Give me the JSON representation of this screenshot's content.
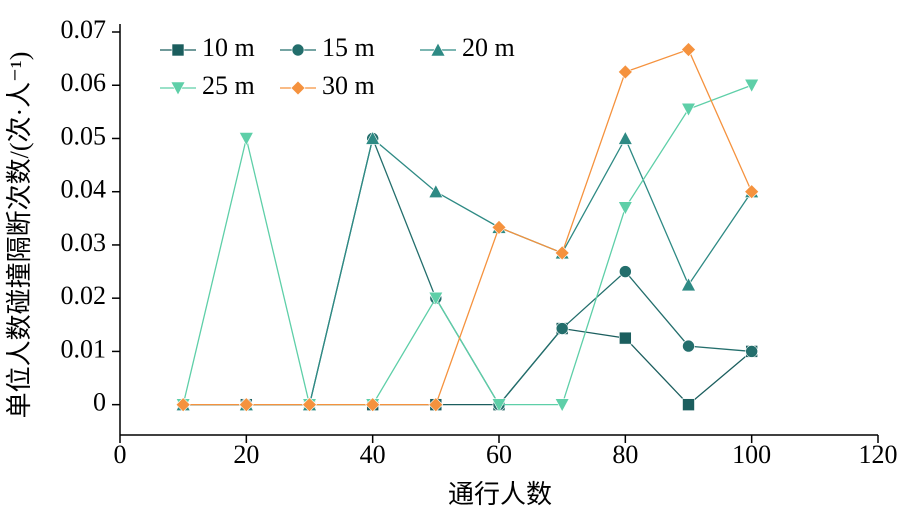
{
  "chart_data": {
    "type": "line",
    "x_label": "通行人数",
    "y_label": "单位人数碰撞隔断次数/(次·人⁻¹)",
    "x": [
      10,
      20,
      30,
      40,
      50,
      60,
      70,
      80,
      90,
      100
    ],
    "xlim": [
      0,
      120
    ],
    "xticks": [
      0,
      20,
      40,
      60,
      80,
      100,
      120
    ],
    "ylim": [
      -0.0057,
      0.07
    ],
    "yticks": [
      0,
      0.01,
      0.02,
      0.03,
      0.04,
      0.05,
      0.06,
      0.07
    ],
    "legend": "upper-left",
    "series": [
      {
        "name": "10 m",
        "color": "#1b5e5e",
        "marker": "square",
        "values": [
          0,
          0,
          0,
          0,
          0,
          0,
          0.0143,
          0.0125,
          0,
          0.01
        ]
      },
      {
        "name": "15 m",
        "color": "#236e6c",
        "marker": "circle",
        "values": [
          0,
          0,
          0,
          0.05,
          0.02,
          0,
          0.0143,
          0.025,
          0.011,
          0.01
        ]
      },
      {
        "name": "20 m",
        "color": "#2e8a84",
        "marker": "triangle-up",
        "values": [
          0,
          0,
          0,
          0.05,
          0.04,
          0.0333,
          0.0285,
          0.05,
          0.0225,
          0.04
        ]
      },
      {
        "name": "25 m",
        "color": "#5ecfa8",
        "marker": "triangle-down",
        "values": [
          0,
          0.05,
          0,
          0,
          0.02,
          0,
          0,
          0.037,
          0.0555,
          0.06
        ]
      },
      {
        "name": "30 m",
        "color": "#f5923e",
        "marker": "diamond",
        "values": [
          0,
          0,
          0,
          0,
          0,
          0.0333,
          0.0285,
          0.0625,
          0.0667,
          0.04
        ]
      }
    ]
  }
}
